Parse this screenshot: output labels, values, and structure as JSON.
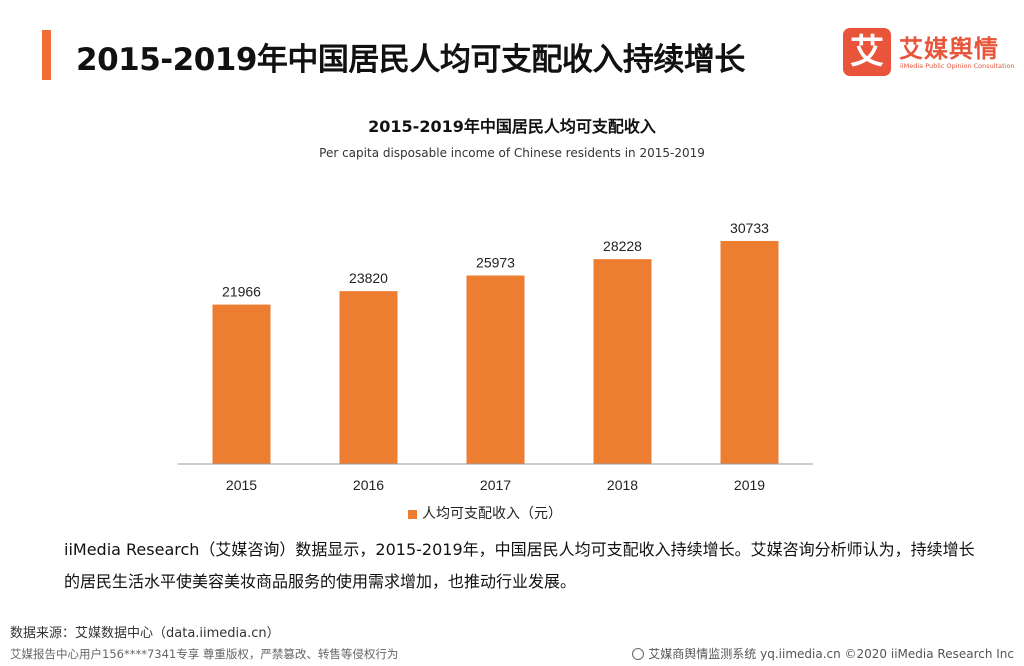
{
  "header": {
    "title": "2015-2019年中国居民人均可支配收入持续增长",
    "accent_color": "#f06f34"
  },
  "logo": {
    "mark": "艾",
    "name": "艾媒舆情",
    "tagline": "iiMedia Public Opinion Consultation",
    "color": "#e8553a"
  },
  "chart_data": {
    "type": "bar",
    "title": "2015-2019年中国居民人均可支配收入",
    "subtitle": "Per capita disposable income of Chinese residents in 2015-2019",
    "categories": [
      "2015",
      "2016",
      "2017",
      "2018",
      "2019"
    ],
    "series": [
      {
        "name": "人均可支配收入（元）",
        "values": [
          21966,
          23820,
          25973,
          28228,
          30733
        ],
        "color": "#ed7d31"
      }
    ],
    "xlabel": "",
    "ylabel": "",
    "ylim": [
      0,
      35000
    ],
    "grid": false,
    "legend": "bottom-center",
    "data_labels": true
  },
  "summary": "iiMedia Research（艾媒咨询）数据显示，2015-2019年，中国居民人均可支配收入持续增长。艾媒咨询分析师认为，持续增长的居民生活水平使美容美妆商品服务的使用需求增加，也推动行业发展。",
  "source": "数据来源：艾媒数据中心（data.iimedia.cn）",
  "footer": {
    "left": "艾媒报告中心用户156****7341专享 尊重版权，严禁篡改、转售等侵权行为",
    "right": "艾媒商舆情监测系统 yq.iimedia.cn ©2020  iiMedia Research  Inc"
  }
}
